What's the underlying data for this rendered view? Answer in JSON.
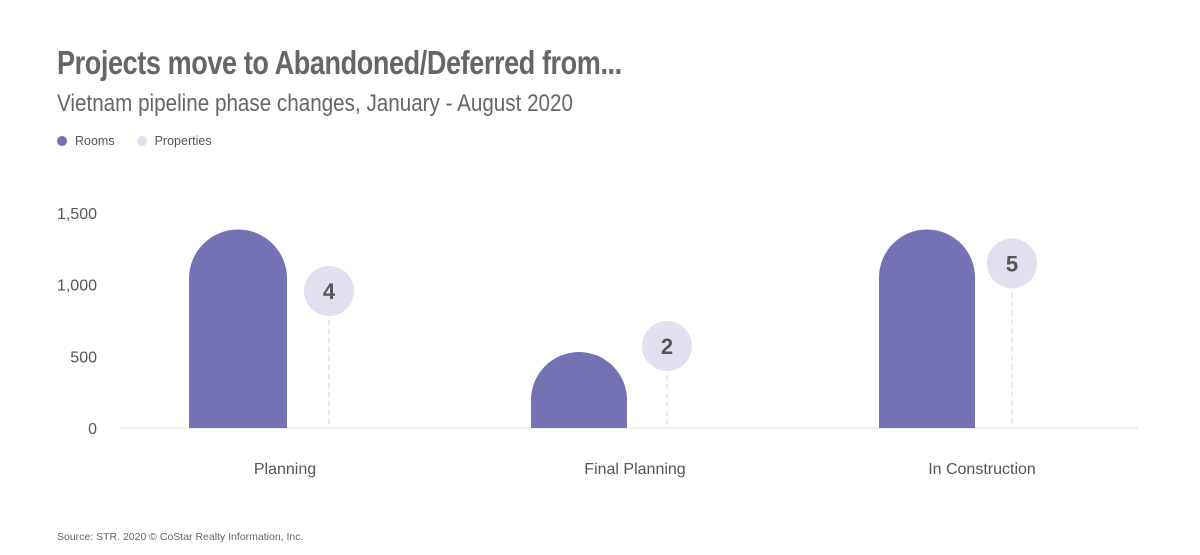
{
  "title": "Projects move to Abandoned/Deferred from...",
  "subtitle": "Vietnam pipeline phase changes, January - August 2020",
  "legend": [
    {
      "label": "Rooms",
      "color": "#7472b4"
    },
    {
      "label": "Properties",
      "color": "#e1e0ef"
    }
  ],
  "source": "Source: STR. 2020 © CoStar Realty Information, Inc.",
  "chart_data": {
    "type": "bar",
    "categories": [
      "Planning",
      "Final Planning",
      "In Construction"
    ],
    "series": [
      {
        "name": "Rooms",
        "values": [
          1385,
          530,
          1385
        ],
        "color": "#7472b4"
      },
      {
        "name": "Properties",
        "values": [
          4,
          2,
          5
        ],
        "color": "#e1e0ef"
      }
    ],
    "yticks": [
      "1,500",
      "1,000",
      "500",
      "0"
    ],
    "ylim": [
      0,
      1500
    ],
    "xlabel": "",
    "ylabel": "",
    "grid": false,
    "legend_position": "top-left"
  }
}
